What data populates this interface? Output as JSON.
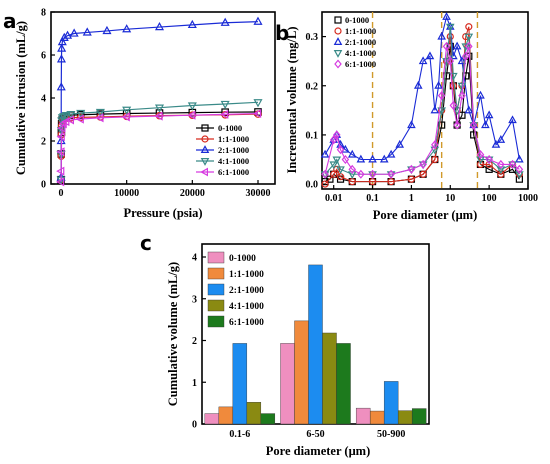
{
  "panels": {
    "a": {
      "label": "a"
    },
    "b": {
      "label": "b"
    },
    "c": {
      "label": "c"
    }
  },
  "chart_data": [
    {
      "id": "a",
      "type": "line",
      "xlabel": "Pressure (psia)",
      "ylabel": "Cumulative intrusion (mL/g)",
      "xlim": [
        0,
        30000
      ],
      "ylim": [
        0,
        8
      ],
      "xticks": [
        0,
        10000,
        20000,
        30000
      ],
      "yticks": [
        0,
        2,
        4,
        6,
        8
      ],
      "legend_position": "bottom-right",
      "series": [
        {
          "name": "0-1000",
          "color": "#000000",
          "marker": "square",
          "points": [
            [
              10,
              0.2
            ],
            [
              30,
              1.4
            ],
            [
              60,
              2.4
            ],
            [
              100,
              2.8
            ],
            [
              200,
              3.0
            ],
            [
              400,
              3.1
            ],
            [
              800,
              3.15
            ],
            [
              1500,
              3.2
            ],
            [
              3000,
              3.22
            ],
            [
              6000,
              3.25
            ],
            [
              10000,
              3.28
            ],
            [
              15000,
              3.3
            ],
            [
              20000,
              3.32
            ],
            [
              25000,
              3.34
            ],
            [
              30000,
              3.35
            ]
          ]
        },
        {
          "name": "1:1-1000",
          "color": "#d62a1e",
          "marker": "circle",
          "points": [
            [
              10,
              0.2
            ],
            [
              30,
              1.3
            ],
            [
              60,
              2.3
            ],
            [
              100,
              2.7
            ],
            [
              200,
              2.9
            ],
            [
              400,
              3.0
            ],
            [
              800,
              3.05
            ],
            [
              1500,
              3.08
            ],
            [
              3000,
              3.1
            ],
            [
              6000,
              3.12
            ],
            [
              10000,
              3.15
            ],
            [
              15000,
              3.18
            ],
            [
              20000,
              3.2
            ],
            [
              25000,
              3.22
            ],
            [
              30000,
              3.25
            ]
          ]
        },
        {
          "name": "2:1-1000",
          "color": "#1a2bd6",
          "marker": "triangle-up",
          "points": [
            [
              10,
              0.3
            ],
            [
              20,
              2.0
            ],
            [
              40,
              4.5
            ],
            [
              70,
              5.8
            ],
            [
              100,
              6.3
            ],
            [
              200,
              6.6
            ],
            [
              500,
              6.8
            ],
            [
              1000,
              6.9
            ],
            [
              2000,
              7.0
            ],
            [
              4000,
              7.05
            ],
            [
              7000,
              7.12
            ],
            [
              10000,
              7.2
            ],
            [
              15000,
              7.3
            ],
            [
              20000,
              7.4
            ],
            [
              25000,
              7.5
            ],
            [
              30000,
              7.55
            ]
          ]
        },
        {
          "name": "4:1-1000",
          "color": "#3a8a88",
          "marker": "triangle-down",
          "points": [
            [
              10,
              0.2
            ],
            [
              30,
              1.4
            ],
            [
              60,
              2.5
            ],
            [
              100,
              2.95
            ],
            [
              200,
              3.1
            ],
            [
              400,
              3.15
            ],
            [
              800,
              3.2
            ],
            [
              1500,
              3.25
            ],
            [
              3000,
              3.3
            ],
            [
              6000,
              3.35
            ],
            [
              10000,
              3.45
            ],
            [
              15000,
              3.55
            ],
            [
              20000,
              3.65
            ],
            [
              25000,
              3.72
            ],
            [
              30000,
              3.8
            ]
          ]
        },
        {
          "name": "6:1-1000",
          "color": "#d63be0",
          "marker": "triangle-left",
          "points": [
            [
              10,
              0.1
            ],
            [
              30,
              0.6
            ],
            [
              60,
              1.5
            ],
            [
              100,
              2.2
            ],
            [
              200,
              2.6
            ],
            [
              400,
              2.8
            ],
            [
              800,
              2.9
            ],
            [
              1500,
              2.98
            ],
            [
              3000,
              3.02
            ],
            [
              6000,
              3.08
            ],
            [
              10000,
              3.12
            ],
            [
              15000,
              3.16
            ],
            [
              20000,
              3.2
            ],
            [
              25000,
              3.24
            ],
            [
              30000,
              3.28
            ]
          ]
        }
      ]
    },
    {
      "id": "b",
      "type": "line",
      "xlabel": "Pore diameter (μm)",
      "ylabel": "Incremental volume (mg/L)",
      "xscale": "log",
      "xlim": [
        0.005,
        1000
      ],
      "ylim": [
        -0.01,
        0.35
      ],
      "xticks": [
        0.01,
        0.1,
        1,
        10,
        100,
        1000
      ],
      "xtick_labels": [
        "0.01",
        "0.1",
        "1",
        "10",
        "100",
        "1000"
      ],
      "yticks": [
        0.0,
        0.1,
        0.2,
        0.3
      ],
      "ytick_labels": [
        "0.0",
        "0.1",
        "0.2",
        "0.3"
      ],
      "vlines": [
        0.1,
        6,
        50
      ],
      "legend_position": "top-left",
      "series": [
        {
          "name": "0-1000",
          "color": "#000000",
          "marker": "square",
          "points": [
            [
              0.006,
              0.005
            ],
            [
              0.008,
              0.01
            ],
            [
              0.01,
              0.02
            ],
            [
              0.015,
              0.01
            ],
            [
              0.03,
              0.005
            ],
            [
              0.1,
              0.005
            ],
            [
              0.3,
              0.005
            ],
            [
              1,
              0.01
            ],
            [
              2,
              0.02
            ],
            [
              4,
              0.05
            ],
            [
              6,
              0.12
            ],
            [
              8,
              0.22
            ],
            [
              10,
              0.28
            ],
            [
              12,
              0.2
            ],
            [
              15,
              0.12
            ],
            [
              20,
              0.14
            ],
            [
              25,
              0.22
            ],
            [
              30,
              0.26
            ],
            [
              40,
              0.1
            ],
            [
              60,
              0.04
            ],
            [
              100,
              0.03
            ],
            [
              200,
              0.02
            ],
            [
              400,
              0.03
            ],
            [
              600,
              0.01
            ]
          ]
        },
        {
          "name": "1:1-1000",
          "color": "#d62a1e",
          "marker": "circle",
          "points": [
            [
              0.006,
              0.0
            ],
            [
              0.01,
              0.02
            ],
            [
              0.012,
              0.03
            ],
            [
              0.015,
              0.015
            ],
            [
              0.03,
              0.005
            ],
            [
              0.1,
              0.005
            ],
            [
              0.3,
              0.005
            ],
            [
              1,
              0.01
            ],
            [
              2,
              0.02
            ],
            [
              4,
              0.05
            ],
            [
              6,
              0.15
            ],
            [
              8,
              0.25
            ],
            [
              10,
              0.3
            ],
            [
              12,
              0.2
            ],
            [
              15,
              0.15
            ],
            [
              20,
              0.2
            ],
            [
              25,
              0.3
            ],
            [
              30,
              0.32
            ],
            [
              40,
              0.12
            ],
            [
              60,
              0.04
            ],
            [
              100,
              0.04
            ],
            [
              200,
              0.02
            ],
            [
              400,
              0.04
            ],
            [
              600,
              0.02
            ]
          ]
        },
        {
          "name": "2:1-1000",
          "color": "#1a2bd6",
          "marker": "triangle-up",
          "points": [
            [
              0.006,
              0.06
            ],
            [
              0.01,
              0.09
            ],
            [
              0.012,
              0.1
            ],
            [
              0.015,
              0.08
            ],
            [
              0.02,
              0.07
            ],
            [
              0.03,
              0.06
            ],
            [
              0.05,
              0.05
            ],
            [
              0.1,
              0.05
            ],
            [
              0.2,
              0.05
            ],
            [
              0.3,
              0.06
            ],
            [
              0.5,
              0.08
            ],
            [
              1,
              0.12
            ],
            [
              1.5,
              0.2
            ],
            [
              2,
              0.25
            ],
            [
              3,
              0.26
            ],
            [
              4,
              0.15
            ],
            [
              5,
              0.2
            ],
            [
              6,
              0.3
            ],
            [
              8,
              0.34
            ],
            [
              10,
              0.32
            ],
            [
              12,
              0.26
            ],
            [
              15,
              0.28
            ],
            [
              20,
              0.25
            ],
            [
              30,
              0.15
            ],
            [
              40,
              0.12
            ],
            [
              60,
              0.18
            ],
            [
              80,
              0.12
            ],
            [
              100,
              0.14
            ],
            [
              150,
              0.08
            ],
            [
              200,
              0.09
            ],
            [
              400,
              0.13
            ],
            [
              600,
              0.05
            ]
          ]
        },
        {
          "name": "4:1-1000",
          "color": "#3a8a88",
          "marker": "triangle-down",
          "points": [
            [
              0.006,
              0.02
            ],
            [
              0.01,
              0.04
            ],
            [
              0.012,
              0.05
            ],
            [
              0.015,
              0.03
            ],
            [
              0.03,
              0.02
            ],
            [
              0.1,
              0.02
            ],
            [
              0.3,
              0.02
            ],
            [
              1,
              0.03
            ],
            [
              2,
              0.04
            ],
            [
              4,
              0.07
            ],
            [
              6,
              0.15
            ],
            [
              8,
              0.25
            ],
            [
              10,
              0.32
            ],
            [
              12,
              0.22
            ],
            [
              15,
              0.15
            ],
            [
              20,
              0.2
            ],
            [
              25,
              0.28
            ],
            [
              30,
              0.3
            ],
            [
              40,
              0.12
            ],
            [
              60,
              0.05
            ],
            [
              100,
              0.05
            ],
            [
              200,
              0.03
            ],
            [
              400,
              0.04
            ],
            [
              600,
              0.02
            ]
          ]
        },
        {
          "name": "6:1-1000",
          "color": "#d63be0",
          "marker": "diamond",
          "points": [
            [
              0.006,
              0.02
            ],
            [
              0.01,
              0.09
            ],
            [
              0.012,
              0.1
            ],
            [
              0.015,
              0.07
            ],
            [
              0.02,
              0.05
            ],
            [
              0.03,
              0.03
            ],
            [
              0.05,
              0.02
            ],
            [
              0.1,
              0.02
            ],
            [
              0.3,
              0.02
            ],
            [
              1,
              0.03
            ],
            [
              2,
              0.04
            ],
            [
              4,
              0.08
            ],
            [
              6,
              0.18
            ],
            [
              8,
              0.28
            ],
            [
              10,
              0.25
            ],
            [
              12,
              0.16
            ],
            [
              15,
              0.12
            ],
            [
              20,
              0.18
            ],
            [
              25,
              0.26
            ],
            [
              30,
              0.28
            ],
            [
              40,
              0.12
            ],
            [
              60,
              0.06
            ],
            [
              100,
              0.05
            ],
            [
              200,
              0.04
            ],
            [
              400,
              0.04
            ],
            [
              600,
              0.03
            ]
          ]
        }
      ]
    },
    {
      "id": "c",
      "type": "bar",
      "xlabel": "Pore diameter (μm)",
      "ylabel": "Cumulative volume (mL/g)",
      "ylim": [
        0,
        4
      ],
      "yticks": [
        0,
        1,
        2,
        3,
        4
      ],
      "categories": [
        "0.1-6",
        "6-50",
        "50-900"
      ],
      "legend_position": "top-left",
      "series": [
        {
          "name": "0-1000",
          "color": "#ef8fbf",
          "values": [
            0.25,
            1.93,
            0.38
          ]
        },
        {
          "name": "1:1-1000",
          "color": "#f08a3c",
          "values": [
            0.41,
            2.47,
            0.31
          ]
        },
        {
          "name": "2:1-1000",
          "color": "#1c8cf0",
          "values": [
            1.93,
            3.81,
            1.02
          ]
        },
        {
          "name": "4:1-1000",
          "color": "#8a8a12",
          "values": [
            0.52,
            2.18,
            0.32
          ]
        },
        {
          "name": "6:1-1000",
          "color": "#1d7a1d",
          "values": [
            0.25,
            1.93,
            0.37
          ]
        }
      ]
    }
  ]
}
